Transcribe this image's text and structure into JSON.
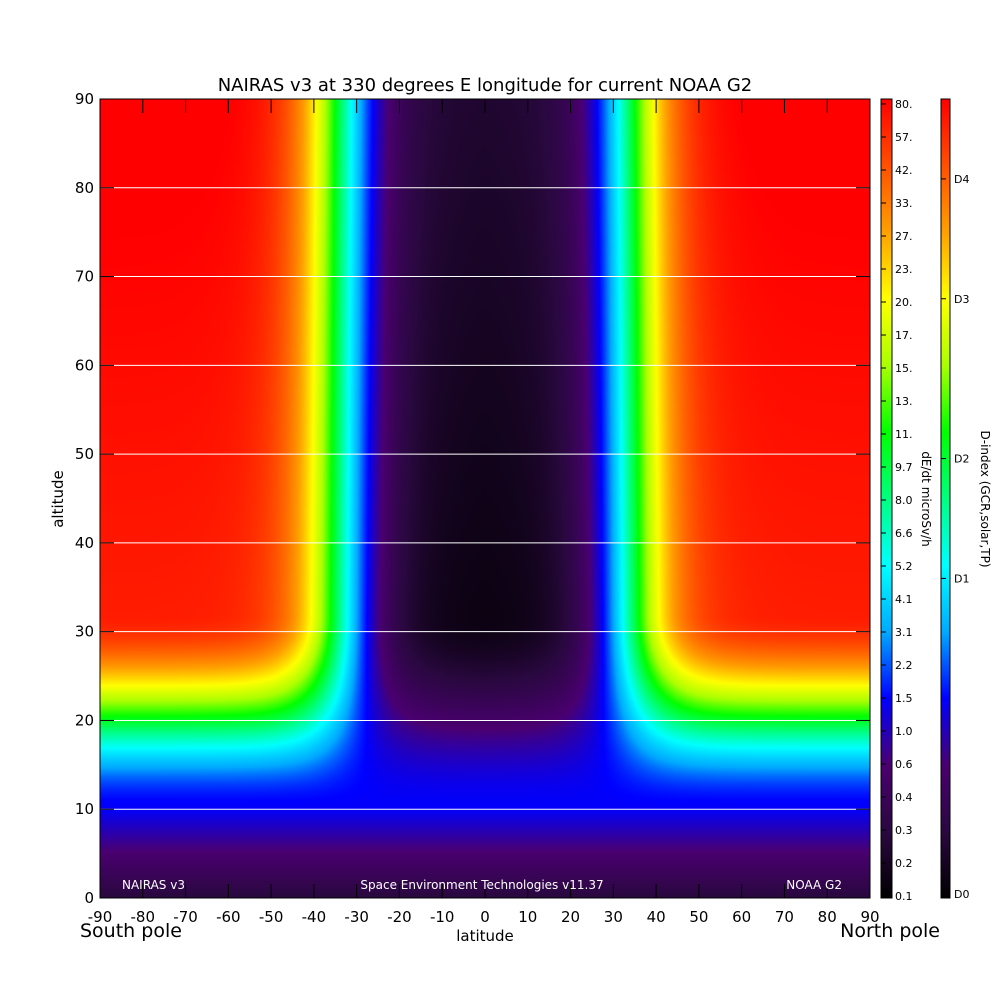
{
  "chart_data": {
    "type": "heatmap",
    "title": "NAIRAS v3 at 330 degrees E longitude for current NOAA G2",
    "xlabel": "latitude",
    "ylabel": "altitude",
    "xlim": [
      -90,
      90
    ],
    "ylim": [
      0,
      90
    ],
    "x_ticks": [
      "-90",
      "-80",
      "-70",
      "-60",
      "-50",
      "-40",
      "-30",
      "-20",
      "-10",
      "0",
      "10",
      "20",
      "30",
      "40",
      "50",
      "60",
      "70",
      "80",
      "90"
    ],
    "y_ticks": [
      "0",
      "10",
      "20",
      "30",
      "40",
      "50",
      "60",
      "70",
      "80",
      "90"
    ],
    "x_tick_values": [
      -90,
      -80,
      -70,
      -60,
      -50,
      -40,
      -30,
      -20,
      -10,
      0,
      10,
      20,
      30,
      40,
      50,
      60,
      70,
      80,
      90
    ],
    "y_tick_values": [
      0,
      10,
      20,
      30,
      40,
      50,
      60,
      70,
      80,
      90
    ],
    "gridlines_y": [
      10,
      20,
      30,
      40,
      50,
      60,
      70,
      80
    ],
    "grid": "horizontal",
    "corner_left": "South pole",
    "corner_right": "North pole",
    "footer_left": "NAIRAS v3",
    "footer_center": "Space Environment Technologies v11.37",
    "footer_right": "NOAA G2",
    "colorbar1": {
      "label": "dE/dt microSv/h",
      "ticks": [
        "80.",
        "57.",
        "42.",
        "33.",
        "27.",
        "23.",
        "20.",
        "17.",
        "15.",
        "13.",
        "11.",
        "9.7",
        "8.0",
        "6.6",
        "5.2",
        "4.1",
        "3.1",
        "2.2",
        "1.5",
        "1.0",
        "0.6",
        "0.4",
        "0.3",
        "0.2",
        "0.1"
      ]
    },
    "colorbar2": {
      "label": "D-index (GCR,solar,TP)",
      "ticks": [
        "D4",
        "D3",
        "D2",
        "D1",
        "D0"
      ],
      "tick_positions": [
        0.1,
        0.25,
        0.45,
        0.6,
        1.0
      ]
    },
    "colormap": [
      "#000000",
      "#2a0840",
      "#4a0070",
      "#0000ff",
      "#00aaff",
      "#00ffff",
      "#00ff80",
      "#00ff00",
      "#aaff00",
      "#ffff00",
      "#ffa000",
      "#ff5000",
      "#ff0000"
    ]
  }
}
